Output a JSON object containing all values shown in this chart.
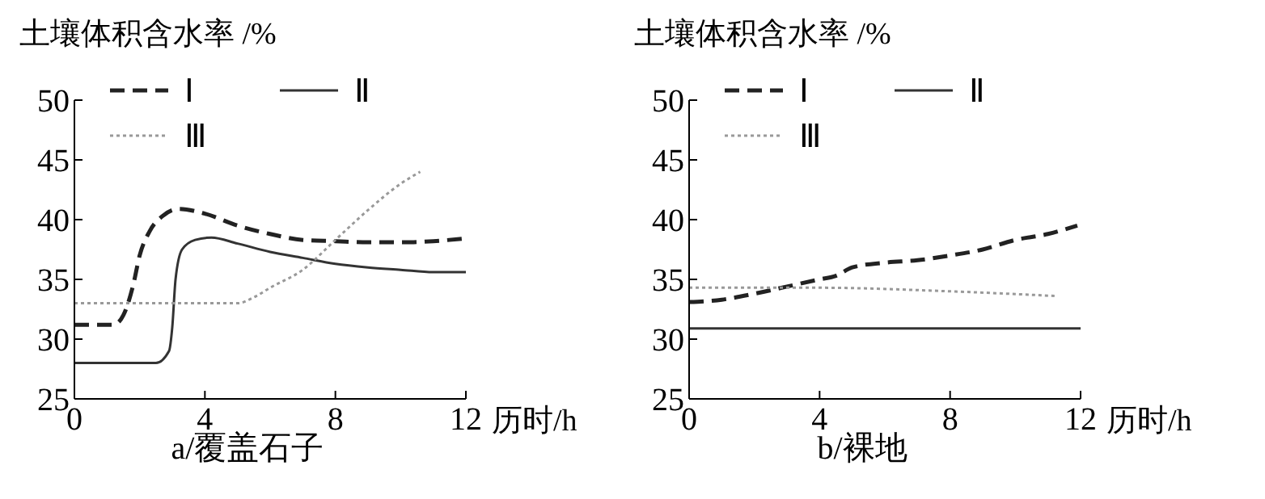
{
  "chart_data": [
    {
      "type": "line",
      "title": "a/覆盖石子",
      "xlabel": "历时/h",
      "ylabel": "土壤体积含水率 /%",
      "xlim": [
        0,
        12
      ],
      "xticks": [
        0,
        4,
        8,
        12
      ],
      "ylim": [
        25,
        50
      ],
      "yticks": [
        25,
        30,
        35,
        40,
        45,
        50
      ],
      "legend": "top left",
      "marker": "none",
      "series": [
        {
          "name": "Ⅰ",
          "color": "#222222",
          "line_style": "dashed",
          "x": [
            0,
            1.2,
            1.5,
            1.8,
            2.0,
            2.3,
            2.7,
            3.2,
            4,
            5,
            6,
            7,
            8,
            9,
            10,
            11,
            11.9
          ],
          "values": [
            31.2,
            31.2,
            32,
            34.5,
            37,
            39,
            40.3,
            40.9,
            40.5,
            39.5,
            38.8,
            38.3,
            38.2,
            38.1,
            38.1,
            38.2,
            38.4
          ]
        },
        {
          "name": "Ⅱ",
          "color": "#333333",
          "line_style": "solid",
          "x": [
            0,
            2.5,
            2.9,
            3.0,
            3.1,
            3.3,
            3.7,
            4.2,
            5,
            6,
            7,
            8,
            9,
            10,
            11,
            12
          ],
          "values": [
            28,
            28,
            29,
            31,
            35,
            37.5,
            38.3,
            38.5,
            38,
            37.3,
            36.8,
            36.3,
            36,
            35.8,
            35.6,
            35.6
          ]
        },
        {
          "name": "Ⅲ",
          "color": "#999999",
          "line_style": "dotted",
          "x": [
            0,
            5,
            5.5,
            6,
            7,
            8,
            9,
            10,
            10.6
          ],
          "values": [
            33,
            33,
            33.5,
            34.3,
            35.8,
            38.3,
            40.8,
            43,
            44
          ]
        }
      ]
    },
    {
      "type": "line",
      "title": "b/裸地",
      "xlabel": "历时/h",
      "ylabel": "土壤体积含水率 /%",
      "xlim": [
        0,
        12
      ],
      "xticks": [
        0,
        4,
        8,
        12
      ],
      "ylim": [
        25,
        50
      ],
      "yticks": [
        25,
        30,
        35,
        40,
        45,
        50
      ],
      "legend": "top left",
      "marker": "none",
      "series": [
        {
          "name": "Ⅰ",
          "color": "#222222",
          "line_style": "dashed",
          "x": [
            0,
            1,
            2,
            3,
            4,
            4.5,
            5,
            6,
            7,
            8,
            9,
            10,
            11,
            11.9
          ],
          "values": [
            33.1,
            33.3,
            33.8,
            34.4,
            35,
            35.3,
            36,
            36.4,
            36.6,
            37,
            37.5,
            38.3,
            38.8,
            39.5
          ]
        },
        {
          "name": "Ⅱ",
          "color": "#333333",
          "line_style": "solid",
          "x": [
            0,
            12
          ],
          "values": [
            30.9,
            30.9
          ]
        },
        {
          "name": "Ⅲ",
          "color": "#999999",
          "line_style": "dotted",
          "x": [
            0,
            4,
            8,
            11.3
          ],
          "values": [
            34.3,
            34.3,
            34,
            33.6
          ]
        }
      ]
    }
  ]
}
